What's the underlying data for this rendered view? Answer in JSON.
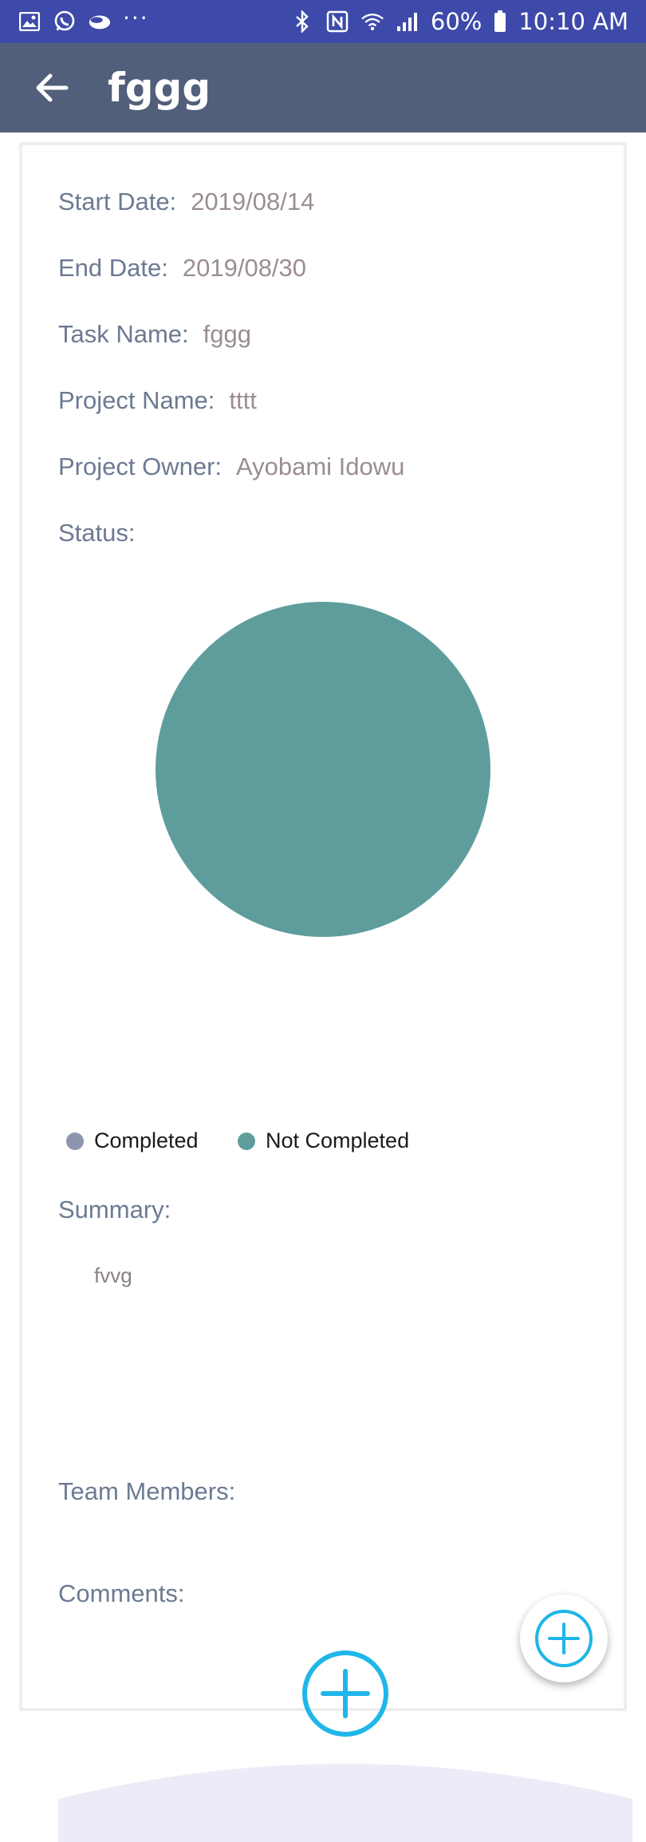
{
  "status_bar": {
    "battery": "60%",
    "time": "10:10 AM",
    "left_icons": [
      "gallery-icon",
      "whatsapp-icon",
      "cloud-icon",
      "more-dots-icon"
    ],
    "right_icons": [
      "bluetooth-icon",
      "nfc-icon",
      "wifi-icon",
      "signal-icon",
      "battery-icon"
    ]
  },
  "app_bar": {
    "title": "fggg"
  },
  "details": {
    "start_date_label": "Start Date:",
    "start_date_value": "2019/08/14",
    "end_date_label": "End Date:",
    "end_date_value": "2019/08/30",
    "task_name_label": "Task Name:",
    "task_name_value": "fggg",
    "project_name_label": "Project Name:",
    "project_name_value": "tttt",
    "project_owner_label": "Project Owner:",
    "project_owner_value": "Ayobami Idowu",
    "status_label": "Status:"
  },
  "chart_data": {
    "type": "pie",
    "categories": [
      "Completed",
      "Not Completed"
    ],
    "values": [
      0,
      100
    ],
    "colors": [
      "#8f95ae",
      "#5f9d9d"
    ],
    "legend_position": "bottom-left"
  },
  "summary": {
    "label": "Summary:",
    "text": "fvvg"
  },
  "team": {
    "label": "Team Members:"
  },
  "comments": {
    "label": "Comments:"
  },
  "colors": {
    "status_bar": "#3d4aa9",
    "app_bar": "#525f7a",
    "label_text": "#6c7a92",
    "value_text": "#9b8d93",
    "accent_cyan": "#1fb6e8",
    "bottom_panel": "#ebecf7"
  }
}
